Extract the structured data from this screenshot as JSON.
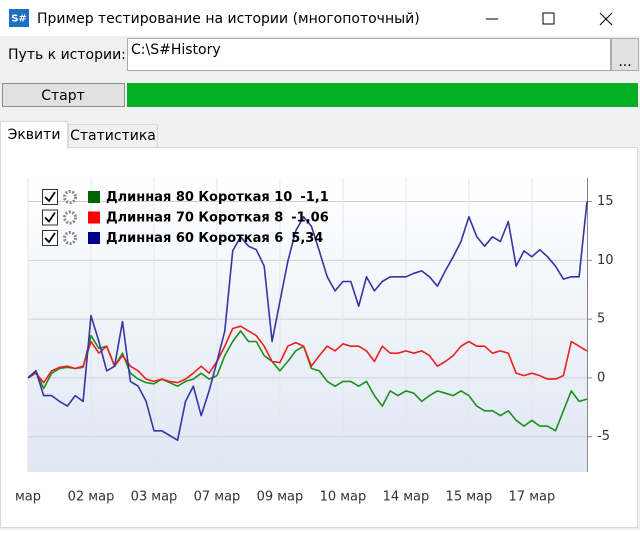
{
  "window": {
    "title": "Пример тестирование на истории (многопоточный)",
    "app_icon": "S#"
  },
  "path_label": "Путь к истории:",
  "path_value": "C:\\S#History",
  "browse_button": "...",
  "start_button": "Старт",
  "tabs": [
    "Эквити",
    "Статистика"
  ],
  "chart_data": {
    "type": "line",
    "categories": [
      "мар",
      null,
      null,
      null,
      null,
      null,
      null,
      null,
      "02 мар",
      null,
      null,
      null,
      null,
      null,
      null,
      null,
      "03 мар",
      null,
      null,
      null,
      null,
      null,
      null,
      null,
      "07 мар",
      null,
      null,
      null,
      null,
      null,
      null,
      null,
      "09 мар",
      null,
      null,
      null,
      null,
      null,
      null,
      null,
      "10 мар",
      null,
      null,
      null,
      null,
      null,
      null,
      null,
      "14 мар",
      null,
      null,
      null,
      null,
      null,
      null,
      null,
      "15 мар",
      null,
      null,
      null,
      null,
      null,
      null,
      null,
      "17 мар",
      null,
      null,
      null,
      null,
      null,
      null,
      null
    ],
    "series": [
      {
        "name": "Длинная 80 Короткая 10",
        "legend_value": "-1,1",
        "color": "#1f8f1f",
        "legend_color": "#006400",
        "values": [
          0,
          0.6,
          -0.9,
          0.4,
          0.8,
          0.9,
          0.8,
          0.9,
          3.6,
          2.5,
          2.7,
          1,
          2.1,
          0.4,
          -0.1,
          -0.4,
          -0.5,
          -0.1,
          -0.4,
          -0.7,
          -0.3,
          -0.1,
          0.4,
          -0.1,
          0.2,
          1.9,
          3.1,
          4,
          3.1,
          3.1,
          1.9,
          1.4,
          0.6,
          1.4,
          2.3,
          2.7,
          0.8,
          0.6,
          -0.3,
          -0.7,
          -0.3,
          -0.3,
          -0.7,
          -0.3,
          -1.5,
          -2.4,
          -1.1,
          -1.5,
          -1.1,
          -1.3,
          -2,
          -1.5,
          -1.1,
          -1.3,
          -1.5,
          -1.1,
          -1.5,
          -2.4,
          -2.8,
          -2.8,
          -3.2,
          -2.8,
          -3.6,
          -4.1,
          -3.6,
          -4.1,
          -4.1,
          -4.5,
          -2.8,
          -1.1,
          -2,
          -1.8
        ]
      },
      {
        "name": "Длинная 70 Короткая 8",
        "legend_value": "-1,06",
        "color": "#ee2020",
        "legend_color": "#ff0000",
        "values": [
          0,
          0.4,
          -0.4,
          0.6,
          0.9,
          1,
          0.8,
          1,
          3.1,
          2.1,
          2.7,
          1,
          1.9,
          1,
          0.6,
          -0.1,
          -0.3,
          -0.1,
          -0.3,
          -0.4,
          -0.1,
          0.4,
          1,
          0.4,
          1.4,
          2.7,
          4.2,
          4.4,
          4,
          3.6,
          2.7,
          1.4,
          1.3,
          2.7,
          3,
          2.7,
          1,
          1.9,
          2.7,
          2.3,
          2.9,
          2.7,
          2.7,
          2.3,
          1.4,
          2.7,
          2.1,
          2.1,
          2.3,
          2.1,
          2.3,
          1.9,
          1,
          1.4,
          1.9,
          2.7,
          3.1,
          2.7,
          2.7,
          2.1,
          2.3,
          2.1,
          0.4,
          0.2,
          0.4,
          0.2,
          -0.1,
          -0.1,
          0.2,
          3.1,
          2.7,
          2.3
        ]
      },
      {
        "name": "Длинная 60 Короткая 6",
        "legend_value": "5,34",
        "color": "#3535a5",
        "legend_color": "#00008b",
        "values": [
          0,
          0.6,
          -1.5,
          -1.5,
          -2,
          -2.4,
          -1.5,
          -2,
          5.3,
          3.1,
          0.6,
          1,
          4.8,
          -0.3,
          -0.7,
          -2,
          -4.5,
          -4.5,
          -4.9,
          -5.3,
          -2,
          -0.7,
          -3.2,
          -1.1,
          1.4,
          4,
          10.8,
          12,
          11.2,
          10.9,
          9.5,
          3.1,
          6.5,
          9.9,
          12.5,
          13.7,
          12.9,
          10.8,
          8.6,
          7.4,
          8.2,
          8.2,
          6.1,
          8.6,
          7.4,
          8.2,
          8.6,
          8.6,
          8.6,
          8.9,
          9.1,
          8.6,
          7.8,
          9.1,
          10.3,
          11.6,
          13.7,
          12,
          11.2,
          12,
          11.6,
          13.3,
          9.5,
          10.8,
          10.3,
          10.9,
          10.3,
          9.5,
          8.4,
          8.6,
          8.6,
          15
        ]
      }
    ],
    "ylim": [
      -8,
      17
    ],
    "yticks": [
      -5,
      0,
      5,
      10,
      15
    ],
    "grid": true,
    "y_axis_side": "right"
  }
}
